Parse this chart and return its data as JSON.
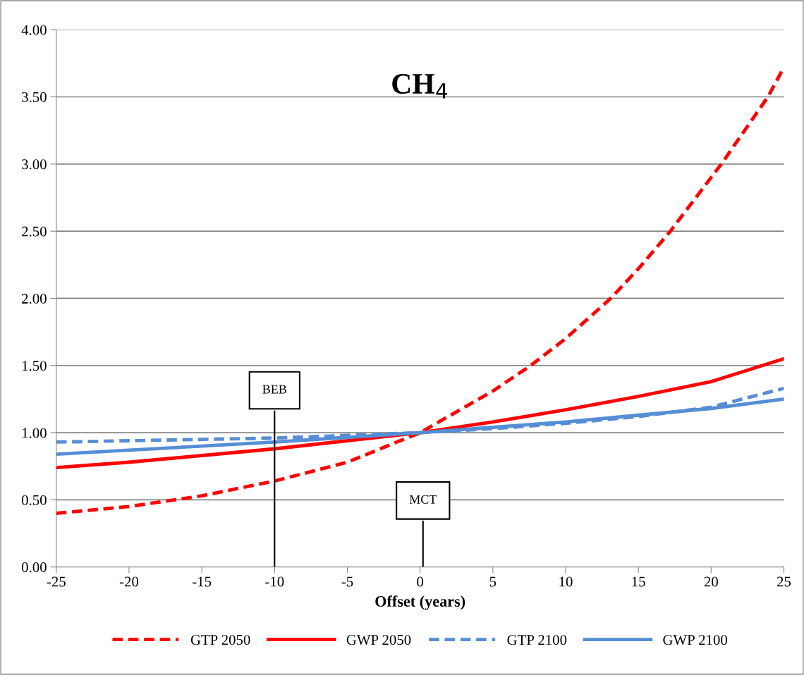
{
  "chart_data": {
    "type": "line",
    "title": "CH$_{4}$",
    "xlabel": "Offset (years)",
    "xlim": [
      -25,
      25
    ],
    "xticks": [
      -25,
      -20,
      -15,
      -10,
      -5,
      0,
      5,
      10,
      15,
      20,
      25
    ],
    "ylim": [
      0,
      4
    ],
    "yticks": [
      {
        "value": 0,
        "label": "0.00"
      },
      {
        "value": 0.5,
        "label": "0.50"
      },
      {
        "value": 1,
        "label": "1.00"
      },
      {
        "value": 1.5,
        "label": "1.50"
      },
      {
        "value": 2,
        "label": "2.00"
      },
      {
        "value": 2.5,
        "label": "2.50"
      },
      {
        "value": 3,
        "label": "3.00"
      },
      {
        "value": 3.5,
        "label": "3.50"
      },
      {
        "value": 4,
        "label": "4.00"
      }
    ],
    "grid": "y",
    "legend": "bottom",
    "series": [
      {
        "name": "GTP 2050",
        "color": "#ff0000",
        "line_style": "dashed",
        "x": [
          -25,
          -20,
          -15,
          -10,
          -5,
          0,
          5,
          7.6,
          10,
          13.1,
          15,
          17.2,
          20,
          20.7,
          23.9,
          25
        ],
        "values": [
          0.4,
          0.45,
          0.53,
          0.64,
          0.78,
          1.0,
          1.31,
          1.5,
          1.7,
          2.0,
          2.22,
          2.5,
          2.9,
          3.0,
          3.5,
          3.72
        ]
      },
      {
        "name": "GWP 2050",
        "color": "#ff0000",
        "line_style": "solid",
        "x": [
          -25,
          -20,
          -15,
          -10,
          -5,
          0,
          5,
          10,
          15,
          20,
          25
        ],
        "values": [
          0.74,
          0.78,
          0.83,
          0.88,
          0.94,
          1.0,
          1.08,
          1.17,
          1.27,
          1.38,
          1.55
        ]
      },
      {
        "name": "GTP 2100",
        "color": "#558ed5",
        "line_style": "dashed",
        "x": [
          -25,
          -20,
          -15,
          -10,
          -5,
          0,
          5,
          10,
          15,
          20,
          25
        ],
        "values": [
          0.93,
          0.94,
          0.95,
          0.96,
          0.98,
          1.0,
          1.03,
          1.07,
          1.12,
          1.19,
          1.33
        ]
      },
      {
        "name": "GWP 2100",
        "color": "#558ed5",
        "line_style": "solid",
        "x": [
          -25,
          -20,
          -15,
          -10,
          -5,
          0,
          5,
          10,
          15,
          20,
          25
        ],
        "values": [
          0.84,
          0.87,
          0.9,
          0.93,
          0.965,
          1.0,
          1.04,
          1.08,
          1.13,
          1.18,
          1.25
        ]
      }
    ],
    "ref_lines": [
      {
        "axis": "x",
        "value": -10,
        "label": "BEB",
        "color": "#000000"
      },
      {
        "axis": "x",
        "value": 0.2,
        "label": "MCT",
        "color": "#000000"
      }
    ]
  }
}
